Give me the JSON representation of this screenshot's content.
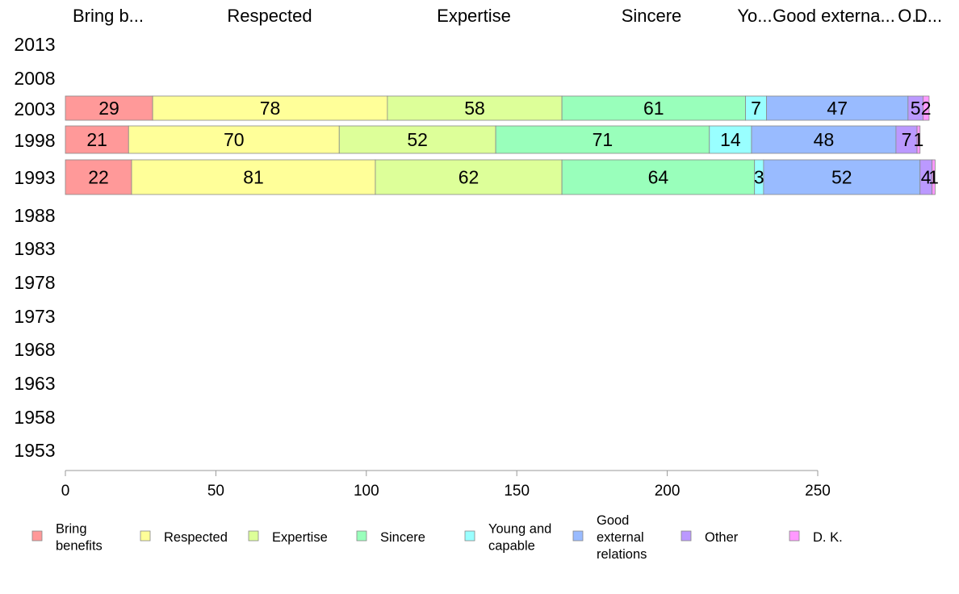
{
  "chart_data": {
    "type": "bar",
    "orientation": "horizontal",
    "stacked": true,
    "years": [
      "2013",
      "2008",
      "2003",
      "1998",
      "1993",
      "1988",
      "1983",
      "1978",
      "1973",
      "1968",
      "1963",
      "1958",
      "1953"
    ],
    "top_labels": [
      "Bring b...",
      "Respected",
      "Expertise",
      "Sincere",
      "Yo...",
      "Good externa...",
      "O...",
      "D..."
    ],
    "series": [
      {
        "name": "Bring benefits",
        "legend_lines": [
          "Bring",
          "benefits"
        ],
        "color": "#ff9999",
        "values": {
          "2003": 29,
          "1998": 21,
          "1993": 22
        }
      },
      {
        "name": "Respected",
        "legend_lines": [
          "Respected"
        ],
        "color": "#ffff99",
        "values": {
          "2003": 78,
          "1998": 70,
          "1993": 81
        }
      },
      {
        "name": "Expertise",
        "legend_lines": [
          "Expertise"
        ],
        "color": "#ddff99",
        "values": {
          "2003": 58,
          "1998": 52,
          "1993": 62
        }
      },
      {
        "name": "Sincere",
        "legend_lines": [
          "Sincere"
        ],
        "color": "#99ffbb",
        "values": {
          "2003": 61,
          "1998": 71,
          "1993": 64
        }
      },
      {
        "name": "Young and capable",
        "legend_lines": [
          "Young and",
          "capable"
        ],
        "color": "#99ffff",
        "values": {
          "2003": 7,
          "1998": 14,
          "1993": 3
        }
      },
      {
        "name": "Good external relations",
        "legend_lines": [
          "Good",
          "external",
          "relations"
        ],
        "color": "#99bbff",
        "values": {
          "2003": 47,
          "1998": 48,
          "1993": 52
        }
      },
      {
        "name": "Other",
        "legend_lines": [
          "Other"
        ],
        "color": "#bb99ff",
        "values": {
          "2003": 5,
          "1998": 7,
          "1993": 4
        }
      },
      {
        "name": "D. K.",
        "legend_lines": [
          "D. K."
        ],
        "color": "#ff99ff",
        "values": {
          "2003": 2,
          "1998": 1,
          "1993": 1
        }
      }
    ],
    "xlim": [
      0,
      250
    ],
    "xticks": [
      0,
      50,
      100,
      150,
      200,
      250
    ],
    "legend_position": "bottom",
    "grid": false
  }
}
